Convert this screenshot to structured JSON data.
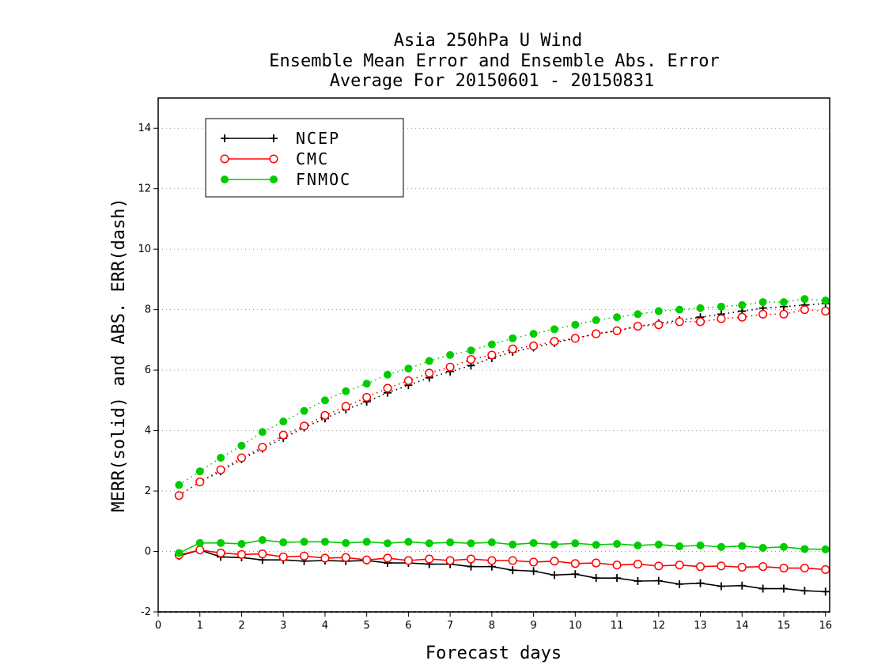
{
  "chart_data": {
    "type": "line",
    "title": [
      "Asia 250hPa U Wind",
      "Ensemble Mean Error and Ensemble Abs. Error",
      "Average For 20150601 - 20150831"
    ],
    "xlabel": "Forecast days",
    "ylabel": "MERR(solid) and ABS. ERR(dash)",
    "xlim": [
      0,
      16.1
    ],
    "ylim": [
      -2,
      15
    ],
    "xticks": [
      0,
      1,
      2,
      3,
      4,
      5,
      6,
      7,
      8,
      9,
      10,
      11,
      12,
      13,
      14,
      15,
      16
    ],
    "yticks": [
      -2,
      0,
      2,
      4,
      6,
      8,
      10,
      12,
      14
    ],
    "grid": "horizontal dotted",
    "legend_position": "top-left",
    "x": [
      0.5,
      1.0,
      1.5,
      2.0,
      2.5,
      3.0,
      3.5,
      4.0,
      4.5,
      5.0,
      5.5,
      6.0,
      6.5,
      7.0,
      7.5,
      8.0,
      8.5,
      9.0,
      9.5,
      10.0,
      10.5,
      11.0,
      11.5,
      12.0,
      12.5,
      13.0,
      13.5,
      14.0,
      14.5,
      15.0,
      15.5,
      16.0
    ],
    "series": [
      {
        "name": "NCEP",
        "color": "#000000",
        "marker": "plus",
        "merr": [
          -0.15,
          0.05,
          -0.18,
          -0.2,
          -0.28,
          -0.28,
          -0.32,
          -0.3,
          -0.32,
          -0.3,
          -0.38,
          -0.38,
          -0.42,
          -0.42,
          -0.5,
          -0.5,
          -0.62,
          -0.65,
          -0.78,
          -0.75,
          -0.88,
          -0.88,
          -0.98,
          -0.97,
          -1.08,
          -1.05,
          -1.15,
          -1.13,
          -1.23,
          -1.23,
          -1.3,
          -1.33
        ],
        "abs_err": [
          1.85,
          2.3,
          2.65,
          3.05,
          3.4,
          3.75,
          4.1,
          4.4,
          4.7,
          4.95,
          5.25,
          5.5,
          5.75,
          5.95,
          6.15,
          6.4,
          6.6,
          6.75,
          6.9,
          7.05,
          7.2,
          7.3,
          7.45,
          7.55,
          7.65,
          7.75,
          7.85,
          7.95,
          8.05,
          8.1,
          8.15,
          8.2
        ]
      },
      {
        "name": "CMC",
        "color": "#ff0000",
        "marker": "open-circle",
        "merr": [
          -0.12,
          0.05,
          -0.05,
          -0.1,
          -0.08,
          -0.18,
          -0.15,
          -0.22,
          -0.2,
          -0.28,
          -0.22,
          -0.3,
          -0.25,
          -0.3,
          -0.25,
          -0.3,
          -0.3,
          -0.35,
          -0.32,
          -0.4,
          -0.38,
          -0.45,
          -0.42,
          -0.48,
          -0.45,
          -0.5,
          -0.48,
          -0.52,
          -0.5,
          -0.55,
          -0.55,
          -0.6
        ],
        "abs_err": [
          1.85,
          2.3,
          2.7,
          3.1,
          3.45,
          3.85,
          4.15,
          4.5,
          4.8,
          5.1,
          5.4,
          5.65,
          5.9,
          6.1,
          6.35,
          6.5,
          6.7,
          6.8,
          6.95,
          7.05,
          7.2,
          7.3,
          7.45,
          7.5,
          7.6,
          7.6,
          7.7,
          7.75,
          7.85,
          7.85,
          8.0,
          7.95
        ]
      },
      {
        "name": "FNMOC",
        "color": "#00cc00",
        "marker": "filled-circle",
        "merr": [
          -0.05,
          0.28,
          0.28,
          0.25,
          0.38,
          0.3,
          0.32,
          0.32,
          0.28,
          0.32,
          0.27,
          0.32,
          0.27,
          0.3,
          0.27,
          0.3,
          0.23,
          0.28,
          0.23,
          0.27,
          0.22,
          0.25,
          0.2,
          0.23,
          0.17,
          0.2,
          0.15,
          0.18,
          0.12,
          0.15,
          0.08,
          0.07
        ],
        "abs_err": [
          2.2,
          2.65,
          3.1,
          3.5,
          3.95,
          4.3,
          4.65,
          5.0,
          5.3,
          5.55,
          5.85,
          6.05,
          6.3,
          6.5,
          6.65,
          6.85,
          7.05,
          7.2,
          7.35,
          7.5,
          7.65,
          7.75,
          7.85,
          7.95,
          8.0,
          8.05,
          8.1,
          8.15,
          8.25,
          8.25,
          8.35,
          8.3
        ]
      }
    ]
  }
}
